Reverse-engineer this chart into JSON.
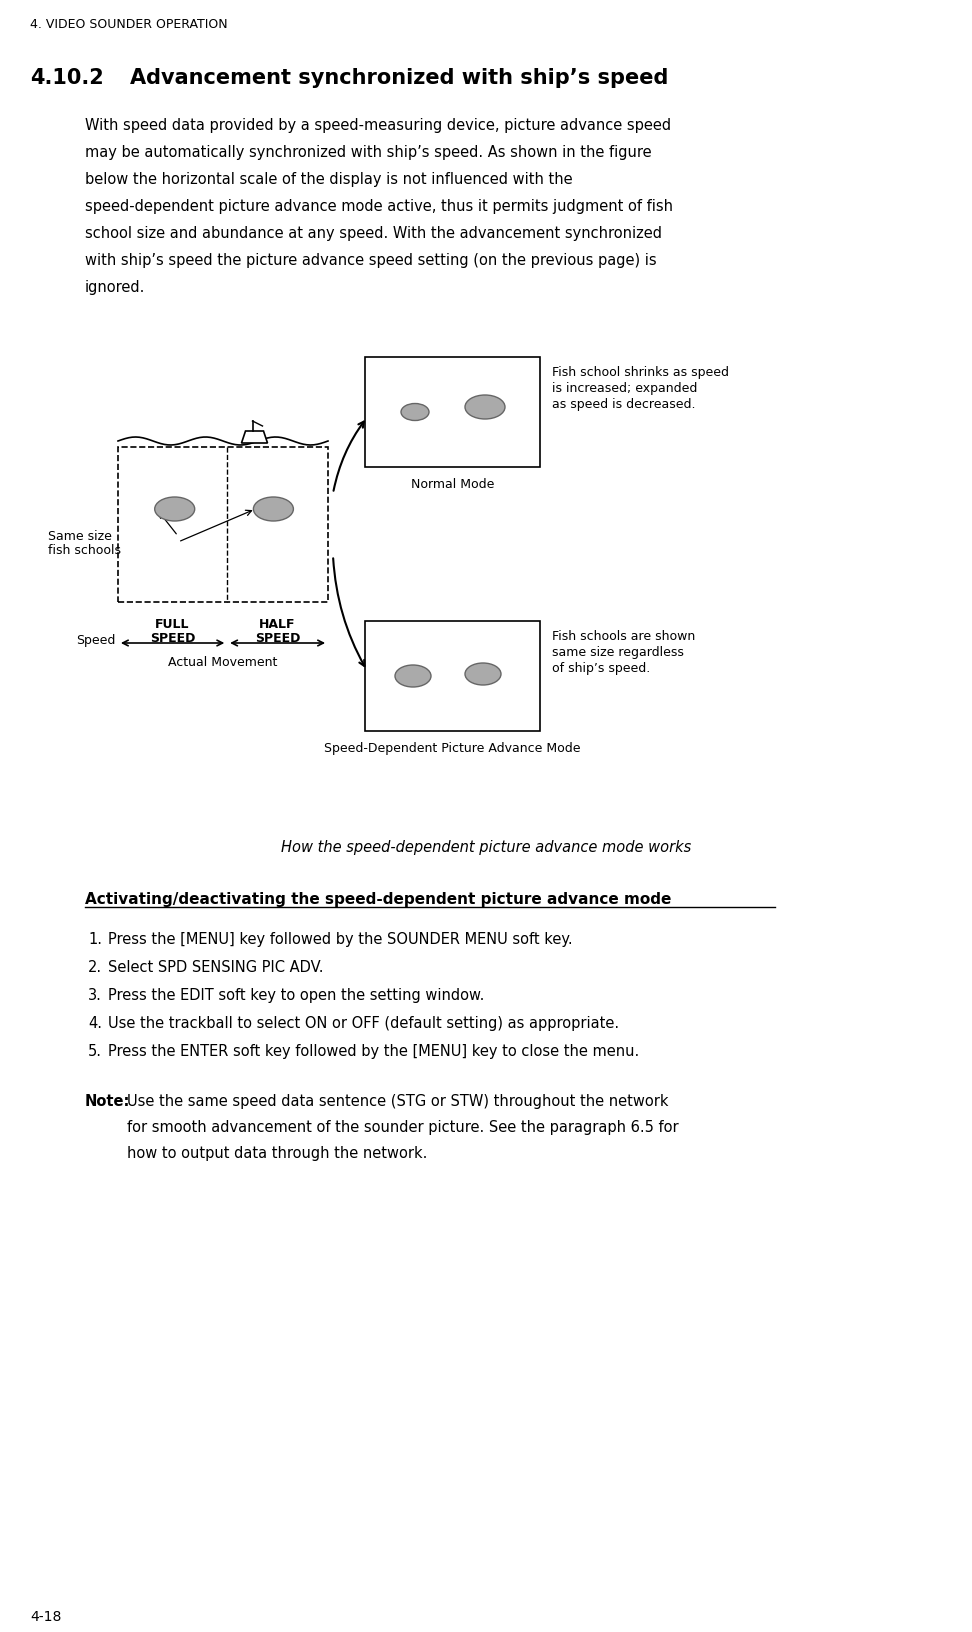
{
  "page_header": "4. VIDEO SOUNDER OPERATION",
  "section": "4.10.2",
  "section_title": "Advancement synchronized with ship’s speed",
  "body_lines": [
    "With speed data provided by a speed-measuring device, picture advance speed",
    "may be automatically synchronized with ship’s speed. As shown in the figure",
    "below the horizontal scale of the display is not influenced with the",
    "speed-dependent picture advance mode active, thus it permits judgment of fish",
    "school size and abundance at any speed. With the advancement synchronized",
    "with ship’s speed the picture advance speed setting (on the previous page) is",
    "ignored."
  ],
  "normal_mode_label": "Normal Mode",
  "normal_mode_note_lines": [
    "Fish school shrinks as speed",
    "is increased; expanded",
    "as speed is decreased."
  ],
  "spd_dep_label": "Speed-Dependent Picture Advance Mode",
  "spd_dep_note_lines": [
    "Fish schools are shown",
    "same size regardless",
    "of ship’s speed."
  ],
  "diagram_caption": "How the speed-dependent picture advance mode works",
  "left_label_fish_line1": "Same size",
  "left_label_fish_line2": "fish schools",
  "speed_label": "Speed",
  "full_speed_line1": "FULL",
  "full_speed_line2": "SPEED",
  "half_speed_line1": "HALF",
  "half_speed_line2": "SPEED",
  "actual_movement": "Actual Movement",
  "activate_heading": "Activating/deactivating the speed-dependent picture advance mode",
  "steps": [
    "Press the [MENU] key followed by the SOUNDER MENU soft key.",
    "Select SPD SENSING PIC ADV.",
    "Press the EDIT soft key to open the setting window.",
    "Use the trackball to select ON or OFF (default setting) as appropriate.",
    "Press the ENTER soft key followed by the [MENU] key to close the menu."
  ],
  "note_label": "Note:",
  "note_lines": [
    "Use the same speed data sentence (STG or STW) throughout the network",
    "for smooth advancement of the sounder picture. See the paragraph 6.5 for",
    "how to output data through the network."
  ],
  "page_number": "4-18",
  "bg_color": "#ffffff",
  "text_color": "#000000",
  "gray_fish": "#aaaaaa",
  "gray_fish_edge": "#666666"
}
